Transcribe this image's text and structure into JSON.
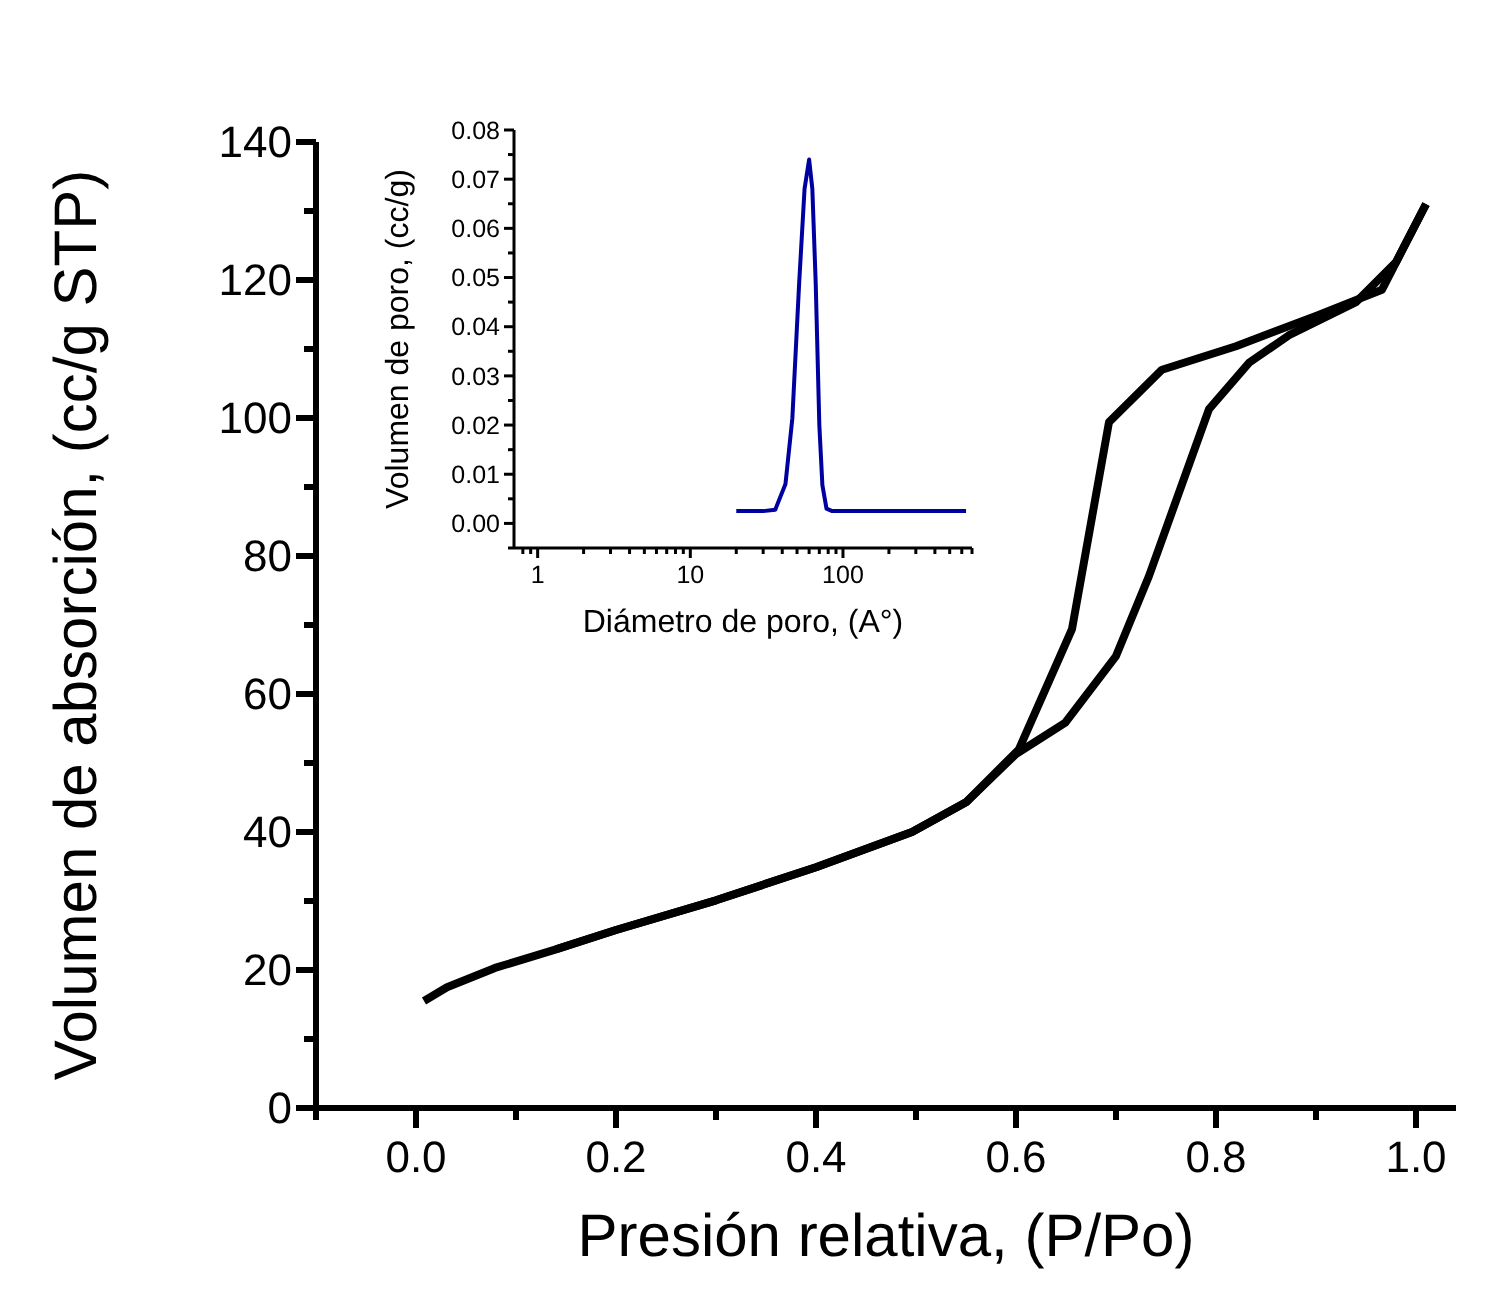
{
  "chart_data": [
    {
      "type": "line",
      "xlabel": "Presión relativa, (P/Po)",
      "ylabel": "Volumen de absorción, (cc/g STP)",
      "xlim": [
        -0.1,
        1.04
      ],
      "ylim": [
        0,
        140
      ],
      "xticks": [
        {
          "value": -0.1,
          "label": null
        },
        {
          "value": 0,
          "label": "0.0"
        },
        {
          "value": 0.1,
          "label": null
        },
        {
          "value": 0.2,
          "label": "0.2"
        },
        {
          "value": 0.3,
          "label": null
        },
        {
          "value": 0.4,
          "label": "0.4"
        },
        {
          "value": 0.5,
          "label": null
        },
        {
          "value": 0.6,
          "label": "0.6"
        },
        {
          "value": 0.7,
          "label": null
        },
        {
          "value": 0.8,
          "label": "0.8"
        },
        {
          "value": 0.9,
          "label": null
        },
        {
          "value": 1,
          "label": "1.0"
        }
      ],
      "yticks": [
        0,
        {
          "value": 10,
          "label": null
        },
        20,
        {
          "value": 30,
          "label": null
        },
        40,
        {
          "value": 50,
          "label": null
        },
        60,
        {
          "value": 70,
          "label": null
        },
        80,
        {
          "value": 90,
          "label": null
        },
        100,
        {
          "value": 110,
          "label": null
        },
        120,
        {
          "value": 130,
          "label": null
        },
        140
      ],
      "grid": false,
      "marker": "none",
      "line_style": "solid",
      "series": [
        {
          "color": "#000000",
          "x": [
            0.008,
            0.031,
            0.079,
            0.14,
            0.2,
            0.3,
            0.4,
            0.496,
            0.55,
            0.6,
            0.649,
            0.7,
            0.733,
            0.793,
            0.833,
            0.873,
            0.94,
            0.98,
            1.01
          ],
          "values": [
            15.5,
            17.5,
            20.3,
            23,
            25.8,
            30.1,
            34.9,
            40,
            44.3,
            51.3,
            55.8,
            65.5,
            77.1,
            101.3,
            108,
            112,
            116.8,
            122.6,
            131
          ]
        },
        {
          "color": "#000000",
          "x": [
            1.01,
            0.966,
            0.9,
            0.82,
            0.746,
            0.693,
            0.656,
            0.603,
            0.55,
            0.496,
            0.4,
            0.3,
            0.2,
            0.14
          ],
          "values": [
            131,
            118.6,
            114.8,
            110.4,
            107,
            99.4,
            69.4,
            52,
            44.3,
            40,
            34.9,
            30.1,
            25.8,
            23
          ]
        }
      ]
    },
    {
      "type": "line",
      "xlabel": "Diámetro de poro, (A°)",
      "ylabel": "Volumen de poro, (cc/g)",
      "log": "x",
      "xlim": [
        0.7,
        700
      ],
      "ylim": [
        -0.005,
        0.08
      ],
      "xticks": [
        {
          "value": 0.8,
          "label": null
        },
        {
          "value": 0.9,
          "label": null
        },
        1,
        {
          "value": 2,
          "label": null
        },
        {
          "value": 3,
          "label": null
        },
        {
          "value": 4,
          "label": null
        },
        {
          "value": 5,
          "label": null
        },
        {
          "value": 6,
          "label": null
        },
        {
          "value": 7,
          "label": null
        },
        {
          "value": 8,
          "label": null
        },
        {
          "value": 9,
          "label": null
        },
        10,
        {
          "value": 20,
          "label": null
        },
        {
          "value": 30,
          "label": null
        },
        {
          "value": 40,
          "label": null
        },
        {
          "value": 50,
          "label": null
        },
        {
          "value": 60,
          "label": null
        },
        {
          "value": 70,
          "label": null
        },
        {
          "value": 80,
          "label": null
        },
        {
          "value": 90,
          "label": null
        },
        100,
        {
          "value": 200,
          "label": null
        },
        {
          "value": 300,
          "label": null
        },
        {
          "value": 400,
          "label": null
        },
        {
          "value": 500,
          "label": null
        },
        {
          "value": 600,
          "label": null
        },
        {
          "value": 700,
          "label": null
        }
      ],
      "yticks": [
        {
          "value": -0.005,
          "label": null
        },
        {
          "value": 0,
          "label": "0.00"
        },
        {
          "value": 0.005,
          "label": null
        },
        {
          "value": 0.01,
          "label": "0.01"
        },
        {
          "value": 0.015,
          "label": null
        },
        {
          "value": 0.02,
          "label": "0.02"
        },
        {
          "value": 0.025,
          "label": null
        },
        {
          "value": 0.03,
          "label": "0.03"
        },
        {
          "value": 0.035,
          "label": null
        },
        {
          "value": 0.04,
          "label": "0.04"
        },
        {
          "value": 0.045,
          "label": null
        },
        {
          "value": 0.05,
          "label": "0.05"
        },
        {
          "value": 0.055,
          "label": null
        },
        {
          "value": 0.06,
          "label": "0.06"
        },
        {
          "value": 0.065,
          "label": null
        },
        {
          "value": 0.07,
          "label": "0.07"
        },
        {
          "value": 0.075,
          "label": null
        },
        {
          "value": 0.08,
          "label": "0.08"
        }
      ],
      "grid": false,
      "marker": "none",
      "line_style": "solid",
      "series": [
        {
          "color": "#0000a0",
          "x": [
            20,
            30,
            36,
            42,
            46.6,
            51.6,
            56,
            60,
            63,
            66.3,
            70,
            73.3,
            78,
            85,
            120,
            300,
            640
          ],
          "values": [
            0.0025,
            0.0025,
            0.0028,
            0.008,
            0.0214,
            0.0487,
            0.068,
            0.074,
            0.068,
            0.0487,
            0.02,
            0.0078,
            0.003,
            0.0025,
            0.0025,
            0.0025,
            0.0025
          ]
        }
      ]
    }
  ]
}
